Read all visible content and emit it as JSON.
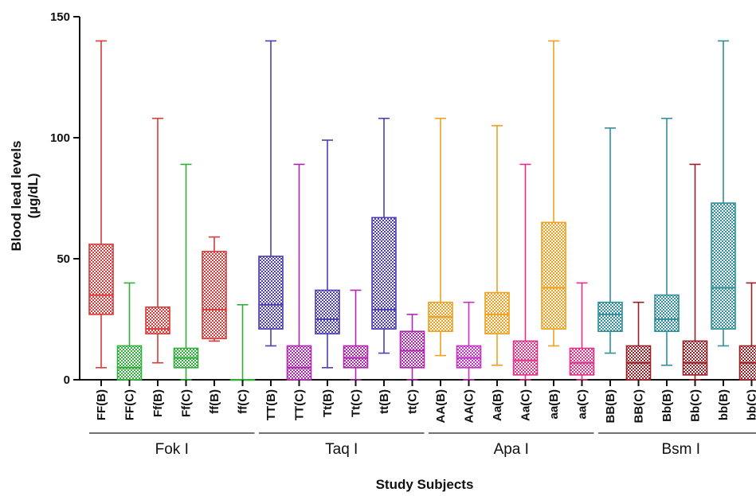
{
  "chart_data": {
    "type": "box",
    "xlabel": "Study Subjects",
    "ylabel": "Blood lead levels",
    "ylabel_unit": "(µg/dL)",
    "ylim": [
      0,
      150
    ],
    "yticks": [
      0,
      50,
      100,
      150
    ],
    "grid": false,
    "groups": [
      {
        "name": "Fok I",
        "color": "#d93a3a",
        "categories": [
          "FF(B)",
          "FF(C)",
          "Ff(B)",
          "Ff(C)",
          "ff(B)",
          "ff(C)"
        ]
      },
      {
        "name": "Taq I",
        "color": "#4b3fb0",
        "categories": [
          "TT(B)",
          "TT(C)",
          "Tt(B)",
          "Tt(C)",
          "tt(B)",
          "tt(C)"
        ]
      },
      {
        "name": "Apa I",
        "color": "#f0a020",
        "categories": [
          "AA(B)",
          "AA(C)",
          "Aa(B)",
          "Aa(C)",
          "aa(B)",
          "aa(C)"
        ]
      },
      {
        "name": "Bsm I",
        "color": "#2f8f9a",
        "categories": [
          "BB(B)",
          "BB(C)",
          "Bb(B)",
          "Bb(C)",
          "bb(B)",
          "bb(C)"
        ]
      }
    ],
    "boxes": [
      {
        "category": "FF(B)",
        "color": "#d93a3a",
        "min": 5,
        "q1": 27,
        "median": 35,
        "q3": 56,
        "max": 140
      },
      {
        "category": "FF(C)",
        "color": "#2fae3a",
        "min": 0,
        "q1": 0,
        "median": 5,
        "q3": 14,
        "max": 40
      },
      {
        "category": "Ff(B)",
        "color": "#d93a3a",
        "min": 7,
        "q1": 19,
        "median": 21,
        "q3": 30,
        "max": 108
      },
      {
        "category": "Ff(C)",
        "color": "#2fae3a",
        "min": 0,
        "q1": 5,
        "median": 9,
        "q3": 13,
        "max": 89
      },
      {
        "category": "ff(B)",
        "color": "#d93a3a",
        "min": 16,
        "q1": 17,
        "median": 29,
        "q3": 53,
        "max": 59
      },
      {
        "category": "ff(C)",
        "color": "#2fae3a",
        "min": 0,
        "q1": 0,
        "median": 0,
        "q3": 0,
        "max": 31
      },
      {
        "category": "TT(B)",
        "color": "#4b3fb0",
        "min": 14,
        "q1": 21,
        "median": 31,
        "q3": 51,
        "max": 140
      },
      {
        "category": "TT(C)",
        "color": "#b025b0",
        "min": 0,
        "q1": 0,
        "median": 5,
        "q3": 14,
        "max": 89
      },
      {
        "category": "Tt(B)",
        "color": "#4b3fb0",
        "min": 5,
        "q1": 19,
        "median": 25,
        "q3": 37,
        "max": 99
      },
      {
        "category": "Tt(C)",
        "color": "#b025b0",
        "min": 0,
        "q1": 5,
        "median": 9,
        "q3": 14,
        "max": 37
      },
      {
        "category": "tt(B)",
        "color": "#4b3fb0",
        "min": 11,
        "q1": 21,
        "median": 29,
        "q3": 67,
        "max": 108
      },
      {
        "category": "tt(C)",
        "color": "#b025b0",
        "min": 0,
        "q1": 5,
        "median": 12,
        "q3": 20,
        "max": 27
      },
      {
        "category": "AA(B)",
        "color": "#f0a020",
        "min": 10,
        "q1": 20,
        "median": 26,
        "q3": 32,
        "max": 108
      },
      {
        "category": "AA(C)",
        "color": "#c730c7",
        "min": 0,
        "q1": 5,
        "median": 9,
        "q3": 14,
        "max": 32
      },
      {
        "category": "Aa(B)",
        "color": "#f0a020",
        "min": 6,
        "q1": 19,
        "median": 27,
        "q3": 36,
        "max": 105
      },
      {
        "category": "Aa(C)",
        "color": "#e0308a",
        "min": 0,
        "q1": 2,
        "median": 8,
        "q3": 16,
        "max": 89
      },
      {
        "category": "aa(B)",
        "color": "#f0a020",
        "min": 14,
        "q1": 21,
        "median": 38,
        "q3": 65,
        "max": 140
      },
      {
        "category": "aa(C)",
        "color": "#e0308a",
        "min": 0,
        "q1": 2,
        "median": 7,
        "q3": 13,
        "max": 40
      },
      {
        "category": "BB(B)",
        "color": "#2f8f9a",
        "min": 11,
        "q1": 20,
        "median": 27,
        "q3": 32,
        "max": 104
      },
      {
        "category": "BB(C)",
        "color": "#9a1e24",
        "min": 0,
        "q1": 0,
        "median": 7,
        "q3": 14,
        "max": 32
      },
      {
        "category": "Bb(B)",
        "color": "#2f8f9a",
        "min": 6,
        "q1": 20,
        "median": 25,
        "q3": 35,
        "max": 108
      },
      {
        "category": "Bb(C)",
        "color": "#9a1e24",
        "min": 0,
        "q1": 2,
        "median": 7,
        "q3": 16,
        "max": 89
      },
      {
        "category": "bb(B)",
        "color": "#2f8f9a",
        "min": 14,
        "q1": 21,
        "median": 38,
        "q3": 73,
        "max": 140
      },
      {
        "category": "bb(C)",
        "color": "#9a1e24",
        "min": 0,
        "q1": 0,
        "median": 7,
        "q3": 14,
        "max": 40
      }
    ]
  }
}
